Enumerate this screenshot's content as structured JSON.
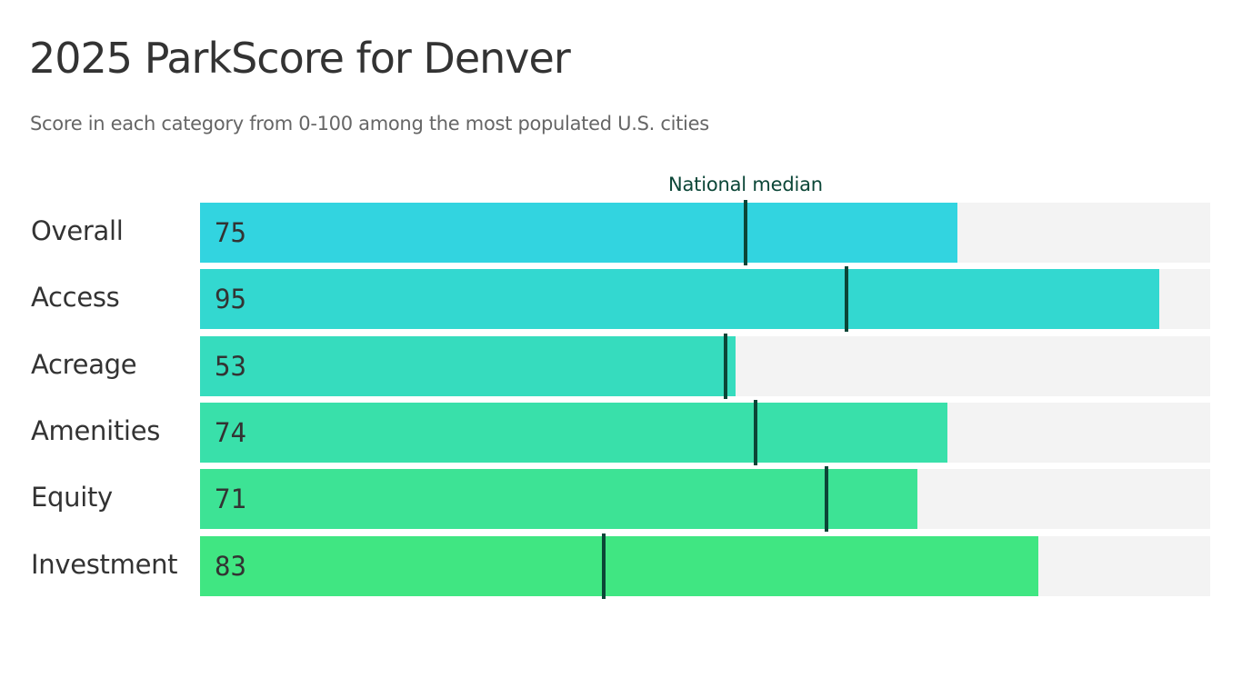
{
  "title": "2025 ParkScore for Denver",
  "subtitle": "Score in each category from 0-100 among the most populated U.S. cities",
  "chart_data": {
    "type": "bar",
    "orientation": "horizontal",
    "title": "2025 ParkScore for Denver",
    "subtitle": "Score in each category from 0-100 among the most populated U.S. cities",
    "xlim": [
      0,
      100
    ],
    "grid": false,
    "categories": [
      "Overall",
      "Access",
      "Acreage",
      "Amenities",
      "Equity",
      "Investment"
    ],
    "values": [
      75,
      95,
      53,
      74,
      71,
      83
    ],
    "value_labels": [
      "75",
      "95",
      "53",
      "74",
      "71",
      "83"
    ],
    "median_label": "National median",
    "median_values": [
      54,
      64,
      52,
      55,
      62,
      40
    ],
    "colors": [
      "#32d4e0",
      "#33d8d0",
      "#36dcbe",
      "#39e0aa",
      "#3de395",
      "#40e682"
    ],
    "median_color": "#0b4637",
    "track_color": "#f3f3f3"
  }
}
